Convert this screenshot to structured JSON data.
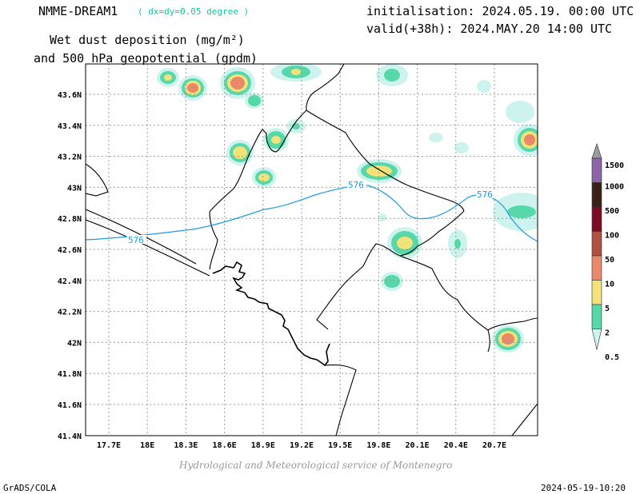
{
  "header": {
    "model_name": "NMME-DREAM1",
    "resolution": "( dx=dy=0.05 degree )",
    "title_line1": "Wet dust deposition (mg/m²)",
    "title_line2": "and 500 hPa geopotential (gpdm)",
    "init": "initialisation: 2024.05.19. 00:00 UTC",
    "valid": "valid(+38h): 2024.MAY.20 14:00 UTC"
  },
  "map": {
    "lon_ticks": [
      "17.7E",
      "18E",
      "18.3E",
      "18.6E",
      "18.9E",
      "19.2E",
      "19.5E",
      "19.8E",
      "20.1E",
      "20.4E",
      "20.7E"
    ],
    "lat_ticks": [
      "43.6N",
      "43.4N",
      "43.2N",
      "43N",
      "42.8N",
      "42.6N",
      "42.4N",
      "42.2N",
      "42N",
      "41.8N",
      "41.6N",
      "41.4N"
    ],
    "contour_label": "576",
    "contour_color": "#1e9be6"
  },
  "legend": {
    "levels": [
      "1500",
      "1000",
      "500",
      "100",
      "50",
      "10",
      "5",
      "2",
      "0.5"
    ],
    "colors": [
      "#9b9b9b",
      "#8c65a8",
      "#3a2016",
      "#7a0c27",
      "#b05040",
      "#e8896a",
      "#f3e27a",
      "#57d8a8",
      "#cdf3ee"
    ]
  },
  "footer": {
    "credit": "Hydrological and Meteorological service of Montenegro",
    "software": "GrADS/COLA",
    "timestamp": "2024-05-19-10:20"
  }
}
